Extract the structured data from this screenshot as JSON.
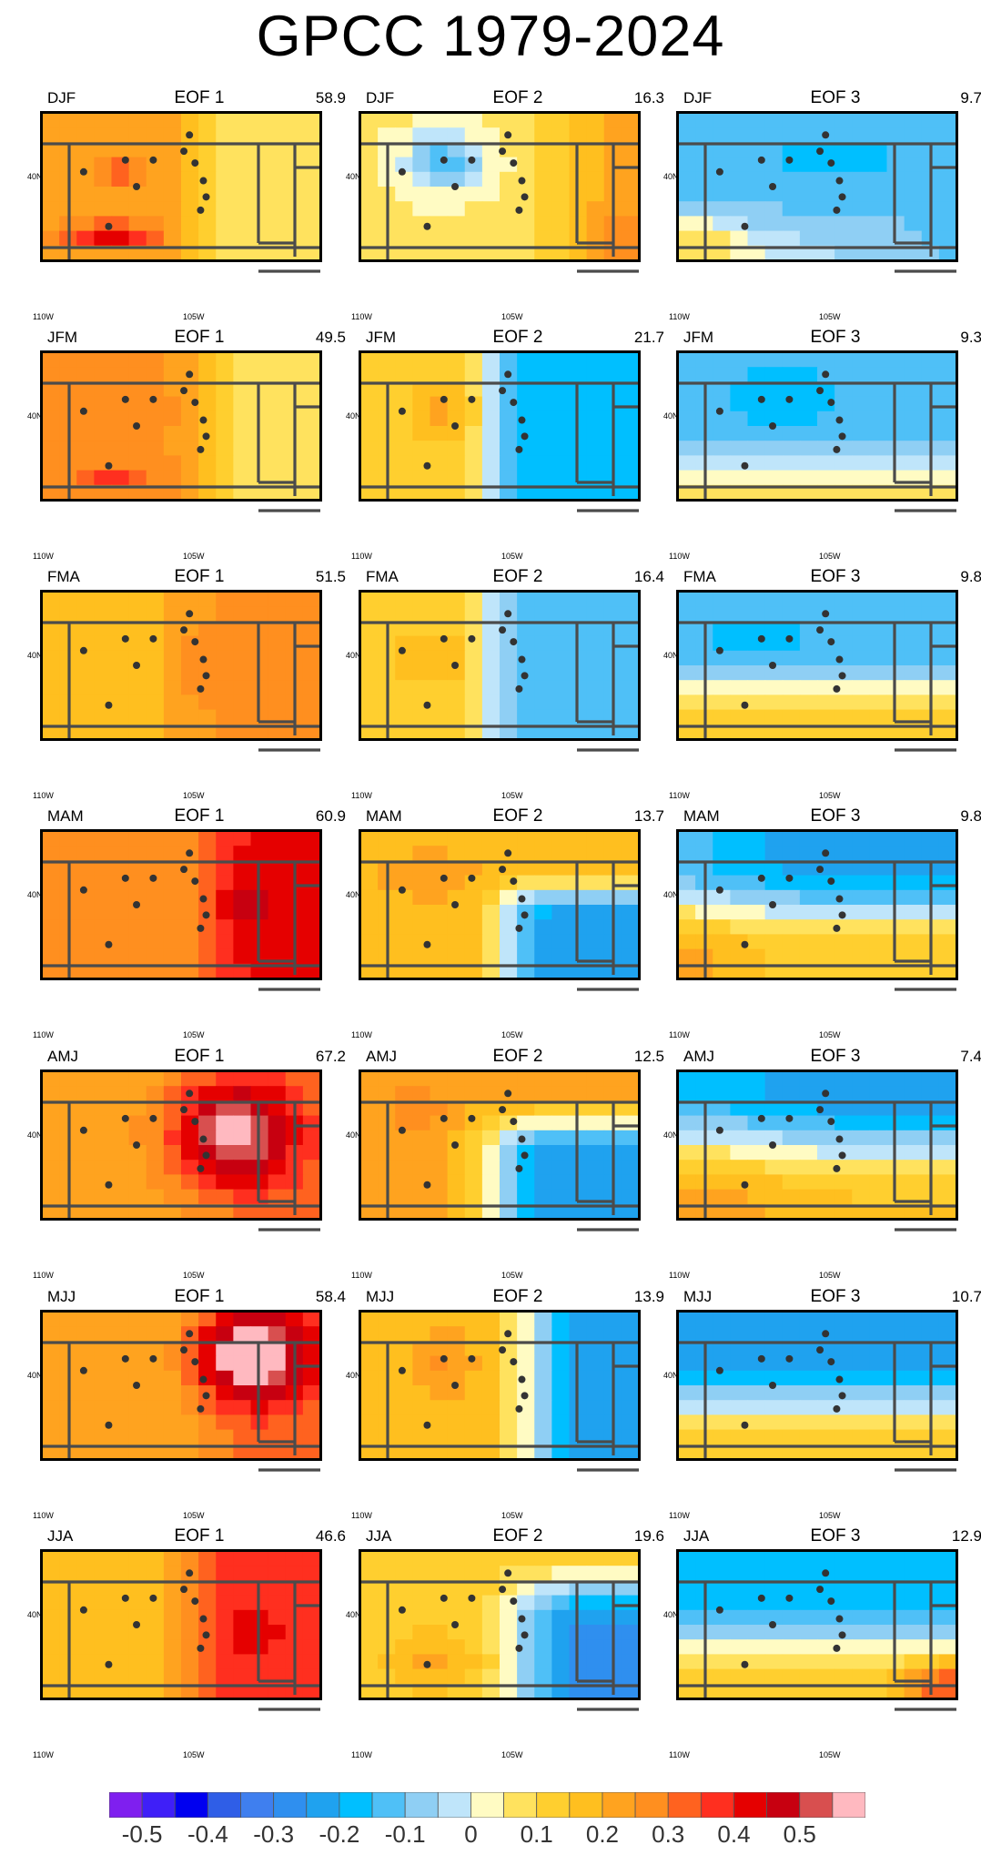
{
  "title": "GPCC 1979-2024",
  "axis_labels": {
    "lat": "40N",
    "lon_left": "110W",
    "lon_mid": "105W"
  },
  "colors": {
    "scale": [
      "#7f1fef",
      "#3f1ff8",
      "#0000f0",
      "#2f5ee7",
      "#3f7fef",
      "#2f8fef",
      "#1fa2ef",
      "#00bfff",
      "#4fc0f7",
      "#8fcff4",
      "#bfe5fa",
      "#fffbc3",
      "#ffe25e",
      "#ffcf2f",
      "#ffbf1f",
      "#ffa31f",
      "#ff8f1f",
      "#ff621f",
      "#ff2f1f",
      "#e50000",
      "#c70010",
      "#d84f4f",
      "#ffb9c0"
    ]
  },
  "colorbar": {
    "ticks": [
      "-0.5",
      "-0.4",
      "-0.3",
      "-0.2",
      "-0.1",
      "0",
      "0.1",
      "0.2",
      "0.3",
      "0.4",
      "0.5"
    ]
  },
  "chart_data": {
    "type": "heatmap",
    "title": "GPCC 1979-2024",
    "value_range": [
      -0.55,
      0.55
    ],
    "lon_range": [
      -111,
      -102
    ],
    "lat_range": [
      36.8,
      41.9
    ],
    "panels": [
      {
        "season": "DJF",
        "eof": "EOF 1",
        "pct": "58.9"
      },
      {
        "season": "DJF",
        "eof": "EOF 2",
        "pct": "16.3"
      },
      {
        "season": "DJF",
        "eof": "EOF 3",
        "pct": "9.7"
      },
      {
        "season": "JFM",
        "eof": "EOF 1",
        "pct": "49.5"
      },
      {
        "season": "JFM",
        "eof": "EOF 2",
        "pct": "21.7"
      },
      {
        "season": "JFM",
        "eof": "EOF 3",
        "pct": "9.3"
      },
      {
        "season": "FMA",
        "eof": "EOF 1",
        "pct": "51.5"
      },
      {
        "season": "FMA",
        "eof": "EOF 2",
        "pct": "16.4"
      },
      {
        "season": "FMA",
        "eof": "EOF 3",
        "pct": "9.8"
      },
      {
        "season": "MAM",
        "eof": "EOF 1",
        "pct": "60.9"
      },
      {
        "season": "MAM",
        "eof": "EOF 2",
        "pct": "13.7"
      },
      {
        "season": "MAM",
        "eof": "EOF 3",
        "pct": "9.8"
      },
      {
        "season": "AMJ",
        "eof": "EOF 1",
        "pct": "67.2"
      },
      {
        "season": "AMJ",
        "eof": "EOF 2",
        "pct": "12.5"
      },
      {
        "season": "AMJ",
        "eof": "EOF 3",
        "pct": "7.4"
      },
      {
        "season": "MJJ",
        "eof": "EOF 1",
        "pct": "58.4"
      },
      {
        "season": "MJJ",
        "eof": "EOF 2",
        "pct": "13.9"
      },
      {
        "season": "MJJ",
        "eof": "EOF 3",
        "pct": "10.7"
      },
      {
        "season": "JJA",
        "eof": "EOF 1",
        "pct": "46.6"
      },
      {
        "season": "JJA",
        "eof": "EOF 2",
        "pct": "19.6"
      },
      {
        "season": "JJA",
        "eof": "EOF 3",
        "pct": "12.9"
      }
    ]
  }
}
